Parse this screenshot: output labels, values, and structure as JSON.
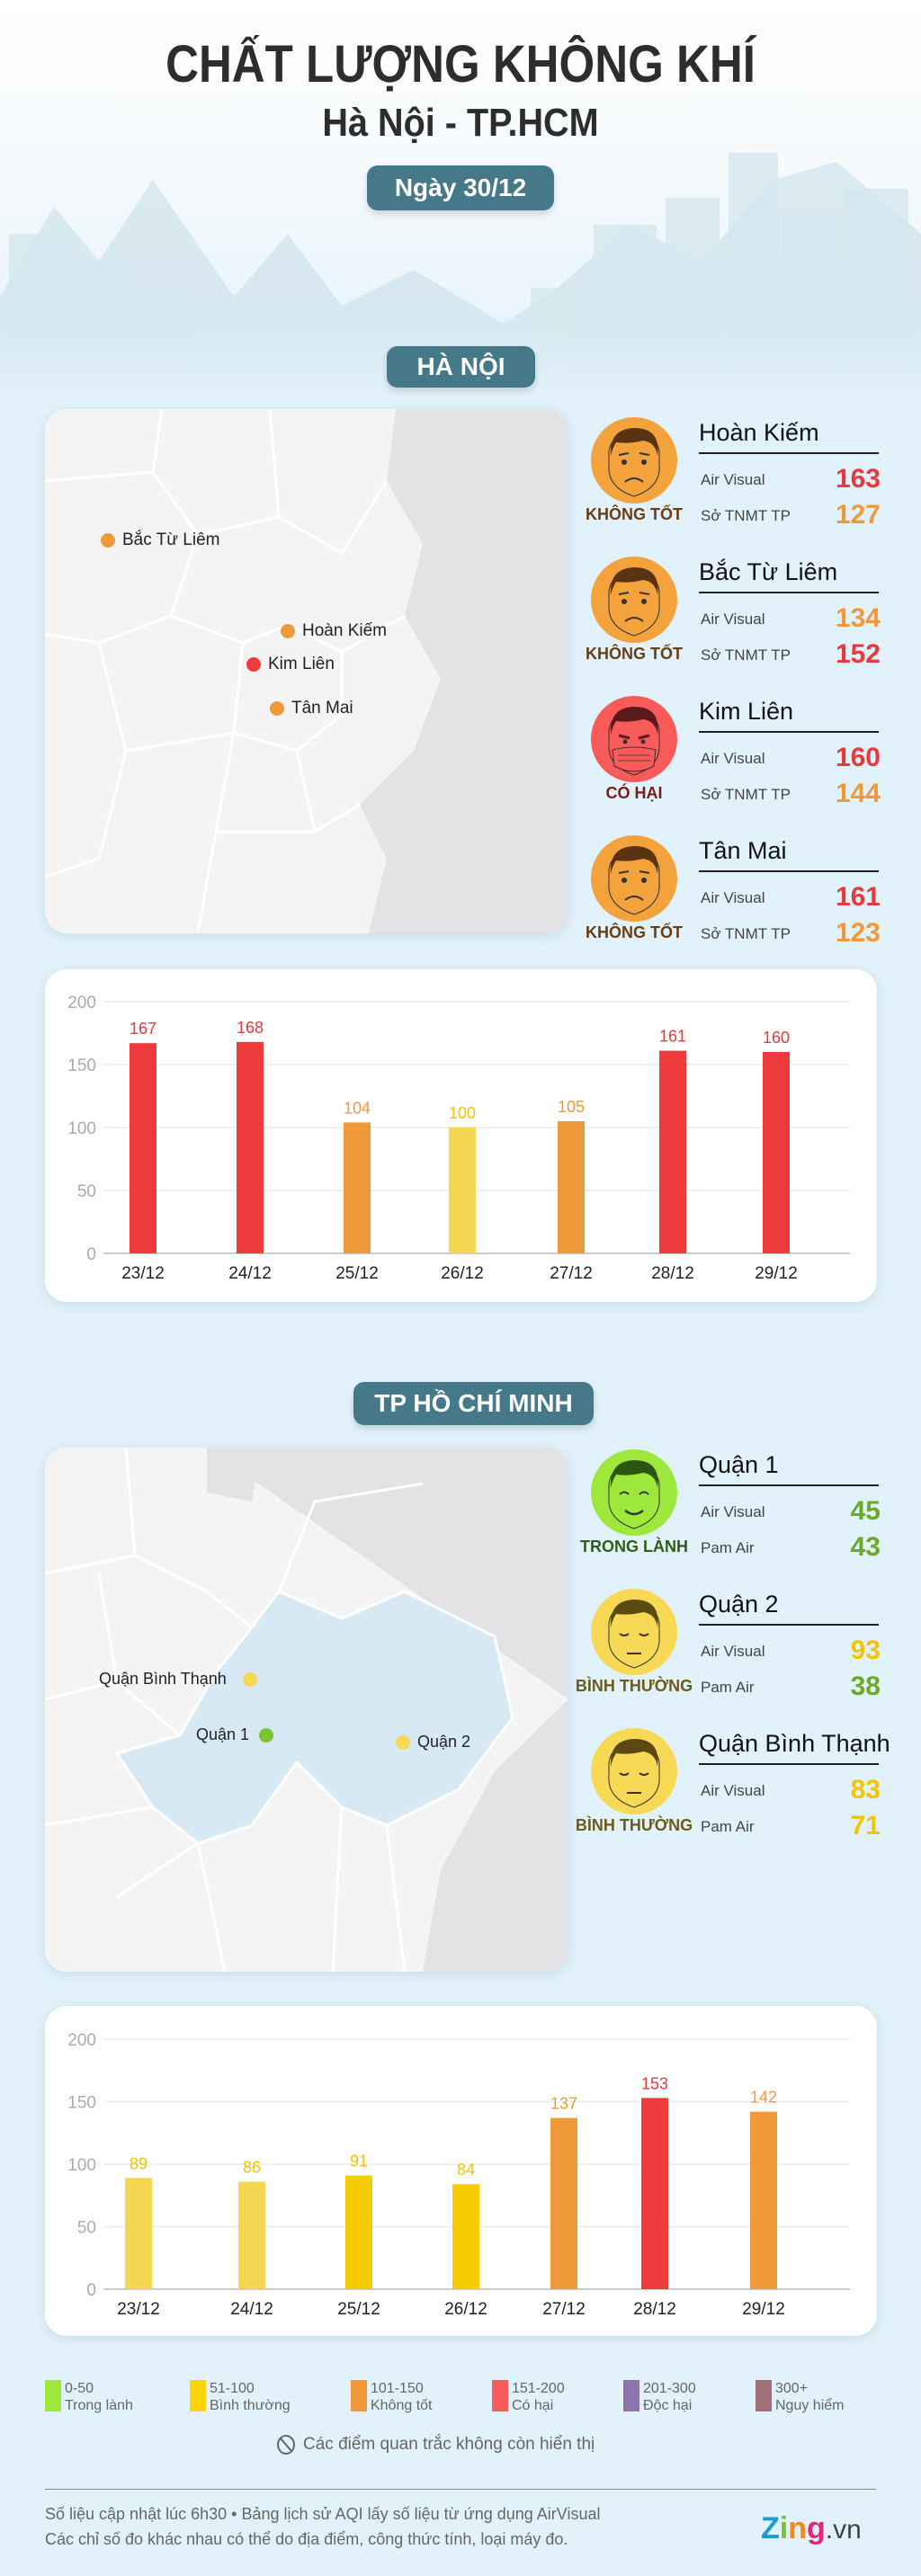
{
  "header": {
    "title": "CHẤT LƯỢNG KHÔNG KHÍ",
    "subtitle": "Hà Nội - TP.HCM",
    "date": "Ngày 30/12"
  },
  "colors": {
    "good": "#9de83a",
    "moderate": "#f5d651",
    "moderate_dark": "#f5cc00",
    "unhealthy_sensitive": "#f0993a",
    "unhealthy": "#ef3b3b",
    "very_unhealthy": "#8e74ad",
    "hazardous": "#a07078",
    "pill": "#457888"
  },
  "hanoi": {
    "section_label": "HÀ NỘI",
    "map_labels": [
      "Bắc Từ Liêm",
      "Hoàn Kiếm",
      "Kim Liên",
      "Tân Mai"
    ],
    "stations": [
      {
        "name": "Hoàn Kiếm",
        "status": "KHÔNG TỐT",
        "face": "sad-face",
        "src1": "Air Visual",
        "v1": "163",
        "src2": "Sở TNMT TP",
        "v2": "127",
        "c1": "#e8393c",
        "c2": "#f0993a",
        "bg": "#f3a23c",
        "sc": "#6b3d12"
      },
      {
        "name": "Bắc Từ Liêm",
        "status": "KHÔNG TỐT",
        "face": "sad-face",
        "src1": "Air Visual",
        "v1": "134",
        "src2": "Sở TNMT TP",
        "v2": "152",
        "c1": "#f0993a",
        "c2": "#e8393c",
        "bg": "#f3a23c",
        "sc": "#6b3d12"
      },
      {
        "name": "Kim Liên",
        "status": "CÓ HẠI",
        "face": "mask-face",
        "src1": "Air Visual",
        "v1": "160",
        "src2": "Sở TNMT TP",
        "v2": "144",
        "c1": "#e8393c",
        "c2": "#f0993a",
        "bg": "#f95a5a",
        "sc": "#7a1a1a"
      },
      {
        "name": "Tân Mai",
        "status": "KHÔNG TỐT",
        "face": "sad-face",
        "src1": "Air Visual",
        "v1": "161",
        "src2": "Sở TNMT TP",
        "v2": "123",
        "c1": "#e8393c",
        "c2": "#f0993a",
        "bg": "#f3a23c",
        "sc": "#6b3d12"
      }
    ]
  },
  "hcm": {
    "section_label": "TP HỒ CHÍ MINH",
    "map_labels": [
      "Quận Bình Thạnh",
      "Quận 1",
      "Quận 2"
    ],
    "stations": [
      {
        "name": "Quận 1",
        "status": "TRONG LÀNH",
        "face": "happy-face",
        "src1": "Air Visual",
        "v1": "45",
        "src2": "Pam Air",
        "v2": "43",
        "c1": "#6aaa25",
        "c2": "#6aaa25",
        "bg": "#9de83a",
        "sc": "#2f5e12"
      },
      {
        "name": "Quận 2",
        "status": "BÌNH THƯỜNG",
        "face": "calm-face",
        "src1": "Air Visual",
        "v1": "93",
        "src2": "Pam Air",
        "v2": "38",
        "c1": "#f5c400",
        "c2": "#6aaa25",
        "bg": "#f7d955",
        "sc": "#6b5c1a"
      },
      {
        "name": "Quận Bình Thạnh",
        "status": "BÌNH THƯỜNG",
        "face": "calm-face",
        "src1": "Air Visual",
        "v1": "83",
        "src2": "Pam Air",
        "v2": "71",
        "c1": "#f5c400",
        "c2": "#f5c400",
        "bg": "#f7d955",
        "sc": "#6b5c1a"
      }
    ]
  },
  "chart_data": [
    {
      "type": "bar",
      "title": "",
      "xlabel": "",
      "ylabel": "",
      "ylim": [
        0,
        200
      ],
      "yticks": [
        "0",
        "50",
        "100",
        "150",
        "200"
      ],
      "grid": true,
      "categories": [
        "23/12",
        "24/12",
        "25/12",
        "26/12",
        "27/12",
        "28/12",
        "29/12"
      ],
      "values": [
        167,
        168,
        104,
        100,
        105,
        161,
        160
      ],
      "colors": [
        "#ef3b3b",
        "#ef3b3b",
        "#f0993a",
        "#f5d651",
        "#f0993a",
        "#ef3b3b",
        "#ef3b3b"
      ],
      "label_colors": [
        "#e8393c",
        "#e8393c",
        "#f0993a",
        "#f5c400",
        "#f0993a",
        "#e8393c",
        "#e8393c"
      ]
    },
    {
      "type": "bar",
      "title": "",
      "xlabel": "",
      "ylabel": "",
      "ylim": [
        0,
        200
      ],
      "yticks": [
        "0",
        "50",
        "100",
        "150",
        "200"
      ],
      "grid": true,
      "categories": [
        "23/12",
        "24/12",
        "25/12",
        "26/12",
        "27/12",
        "28/12",
        "29/12"
      ],
      "values": [
        89,
        86,
        91,
        84,
        137,
        153,
        142
      ],
      "colors": [
        "#f5d651",
        "#f5d651",
        "#f5cc00",
        "#f5cc00",
        "#f0993a",
        "#ef3b3b",
        "#f0993a"
      ],
      "label_colors": [
        "#f5c400",
        "#f5c400",
        "#f5c400",
        "#f5c400",
        "#f0993a",
        "#e8393c",
        "#f0993a"
      ]
    }
  ],
  "legend": [
    {
      "range": "0-50",
      "label": "Trong lành",
      "color": "#9de83a"
    },
    {
      "range": "51-100",
      "label": "Bình thường",
      "color": "#fcd40a"
    },
    {
      "range": "101-150",
      "label": "Không tốt",
      "color": "#f0993a"
    },
    {
      "range": "151-200",
      "label": "Có hại",
      "color": "#f95a5a"
    },
    {
      "range": "201-300",
      "label": "Độc hại",
      "color": "#8e74ad"
    },
    {
      "range": "300+",
      "label": "Nguy hiểm",
      "color": "#a07078"
    }
  ],
  "note": "Các điểm quan trắc không còn hiển thị",
  "footer": {
    "line1": "Số liệu cập nhật lúc 6h30 • Bảng lịch sử AQI lấy số liệu từ ứng dụng AirVisual",
    "line2": "Các chỉ số đo khác nhau có thể do địa điểm, công thức tính, loại máy đo.",
    "logo": "Zing.vn"
  }
}
